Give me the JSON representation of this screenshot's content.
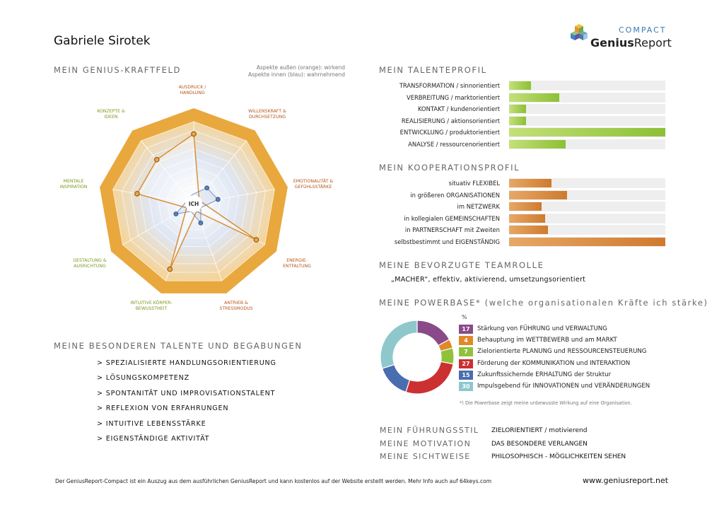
{
  "header": {
    "name": "Gabriele Sirotek",
    "logo_compact": "COMPACT",
    "logo_genius": "Genius",
    "logo_report": "Report"
  },
  "kraftfeld": {
    "title": "MEIN GENIUS-KRAFTFELD",
    "note_line1": "Aspekte außen (orange): wirkend",
    "note_line2": "Aspekte innen (blau): wahrnehmend",
    "center": "ICH",
    "axes": [
      {
        "line1": "AUSDRUCK /",
        "line2": "HANDLUNG",
        "color": "orange",
        "outer": 0.85,
        "inner": 0.12
      },
      {
        "line1": "WILLENSKRAFT &",
        "line2": "DURCHSETZUNG",
        "color": "orange",
        "outer": 0.1,
        "inner": 0.25
      },
      {
        "line1": "EMOTIONALITÄT &",
        "line2": "GEFÜHLSSTÄRKE",
        "color": "orange",
        "outer": 0.1,
        "inner": 0.3
      },
      {
        "line1": "ENERGIE-",
        "line2": "ENTFALTUNG",
        "color": "orange",
        "outer": 0.88,
        "inner": 0.1
      },
      {
        "line1": "ANTRIEB &",
        "line2": "STRESSMODUS",
        "color": "orange",
        "outer": 0.1,
        "inner": 0.25
      },
      {
        "line1": "INTUITIVE KÖRPER-",
        "line2": "BEWUSSTHEIT",
        "color": "green",
        "outer": 0.85,
        "inner": 0.1
      },
      {
        "line1": "GESTALTUNG &",
        "line2": "AUSRICHTUNG",
        "color": "green",
        "outer": 0.1,
        "inner": 0.25
      },
      {
        "line1": "MENTALE",
        "line2": "INSPIRATION",
        "color": "green",
        "outer": 0.7,
        "inner": 0.1
      },
      {
        "line1": "KONZEPTE &",
        "line2": "IDEEN",
        "color": "green",
        "outer": 0.7,
        "inner": 0.1
      }
    ]
  },
  "talente": {
    "title": "MEINE BESONDEREN TALENTE UND BEGABUNGEN",
    "items": [
      "> SPEZIALISIERTE HANDLUNGSORIENTIERUNG",
      "> LÖSUNGSKOMPETENZ",
      "> SPONTANITÄT UND IMPROVISATIONSTALENT",
      "> REFLEXION VON ERFAHRUNGEN",
      "> INTUITIVE LEBENSSTÄRKE",
      "> EIGENSTÄNDIGE AKTIVITÄT"
    ]
  },
  "talentprofil": {
    "title": "MEIN TALENTEPROFIL",
    "rows": [
      {
        "label": "TRANSFORMATION / sinnorientiert",
        "value": 0.14
      },
      {
        "label": "VERBREITUNG / marktorientiert",
        "value": 0.32
      },
      {
        "label": "KONTAKT / kundenorientiert",
        "value": 0.11
      },
      {
        "label": "REALISIERUNG / aktionsorientiert",
        "value": 0.11
      },
      {
        "label": "ENTWICKLUNG / produktorientiert",
        "value": 1.0
      },
      {
        "label": "ANALYSE / ressourcenorientiert",
        "value": 0.36
      }
    ]
  },
  "kooperation": {
    "title": "MEIN KOOPERATIONSPROFIL",
    "rows": [
      {
        "label": "situativ FLEXIBEL",
        "value": 0.27
      },
      {
        "label": "in größeren ORGANISATIONEN",
        "value": 0.37
      },
      {
        "label": "im NETZWERK",
        "value": 0.21
      },
      {
        "label": "in kollegialen GEMEINSCHAFTEN",
        "value": 0.23
      },
      {
        "label": "in PARTNERSCHAFT mit Zweiten",
        "value": 0.25
      },
      {
        "label": "selbstbestimmt und EIGENSTÄNDIG",
        "value": 1.0
      }
    ]
  },
  "teamrolle": {
    "title": "MEINE BEVORZUGTE TEAMROLLE",
    "value": "„MACHER“, effektiv, aktivierend, umsetzungsorientiert"
  },
  "powerbase": {
    "title": "MEINE POWERBASE* (welche organisationalen Kräfte ich stärke)",
    "percent": "%",
    "items": [
      {
        "value": 17,
        "num": "17",
        "label": "Stärkung von FÜHRUNG und VERWALTUNG",
        "color": "#8a4a8a"
      },
      {
        "value": 4,
        "num": "4",
        "label": "Behauptung im WETTBEWERB und am MARKT",
        "color": "#e0882a"
      },
      {
        "value": 7,
        "num": "7",
        "label": "Zielorientierte PLANUNG und RESSOURCENSTEUERUNG",
        "color": "#8fc23a"
      },
      {
        "value": 27,
        "num": "27",
        "label": "Förderung der KOMMUNIKATION und INTERAKTION",
        "color": "#cc3030"
      },
      {
        "value": 15,
        "num": "15",
        "label": "Zukunftssichernde ERHALTUNG der Struktur",
        "color": "#4a6db0"
      },
      {
        "value": 30,
        "num": "30",
        "label": "Impulsgebend für INNOVATIONEN und VERÄNDERUNGEN",
        "color": "#8ec8cc"
      }
    ],
    "footnote": "*) Die Powerbase zeigt meine unbewusste Wirkung auf eine Organisation."
  },
  "styles": [
    {
      "label": "MEIN FÜHRUNGSSTIL",
      "value": "ZIELORIENTIERT / motivierend"
    },
    {
      "label": "MEINE MOTIVATION",
      "value": "DAS BESONDERE VERLANGEN"
    },
    {
      "label": "MEINE SICHTWEISE",
      "value": "PHILOSOPHISCH - MÖGLICHKEITEN SEHEN"
    }
  ],
  "footer": {
    "text": "Der GeniusReport-Compact ist ein Auszug aus dem ausführlichen GeniusReport und kann kostenlos auf der Website erstellt werden. Mehr Info auch auf 64keys.com",
    "website": "www.geniusreport.net"
  },
  "colors": {
    "orange_bar": "#d98a3a",
    "green_bar": "#9ccc45",
    "radar_orange": "#e8a83e",
    "radar_blue": "#5a7fb5"
  }
}
